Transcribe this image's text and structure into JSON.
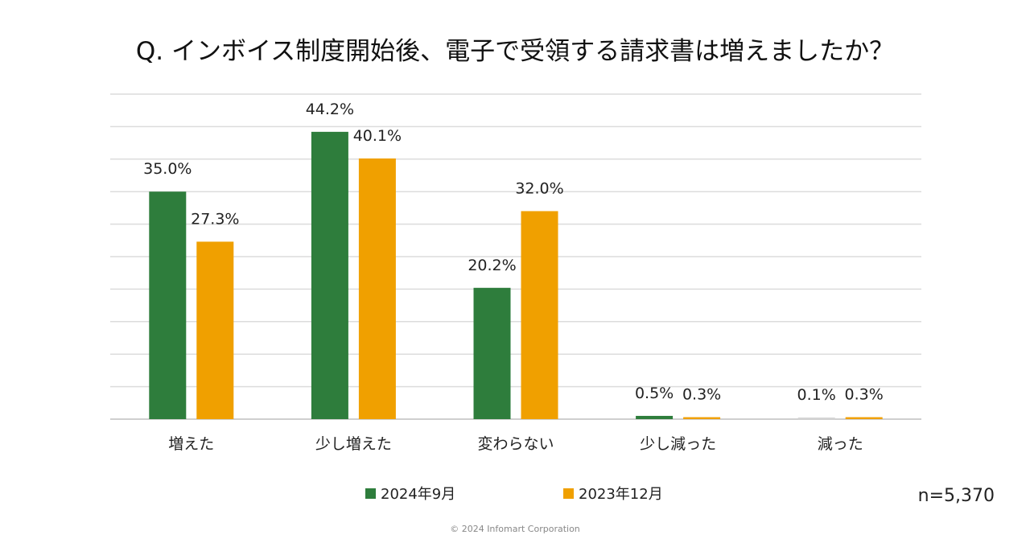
{
  "chart_data": {
    "type": "bar",
    "title": "Q. インボイス制度開始後、電子で受領する請求書は増えましたか？",
    "categories": [
      "増えた",
      "少し増えた",
      "変わらない",
      "少し減った",
      "減った"
    ],
    "series": [
      {
        "name": "2024年9月",
        "values": [
          35.0,
          44.2,
          20.2,
          0.5,
          0.1
        ],
        "labels": [
          "35.0%",
          "44.2%",
          "20.2%",
          "0.5%",
          "0.1%"
        ],
        "color": "#2e7d3c"
      },
      {
        "name": "2023年12月",
        "values": [
          27.3,
          40.1,
          32.0,
          0.3,
          0.3
        ],
        "labels": [
          "27.3%",
          "40.1%",
          "32.0%",
          "0.3%",
          "0.3%"
        ],
        "color": "#f0a000"
      }
    ],
    "ylim": [
      0,
      50
    ],
    "grid": true,
    "legend_position": "bottom"
  },
  "sample_size": "n=5,370",
  "copyright": "© 2024 Infomart Corporation"
}
